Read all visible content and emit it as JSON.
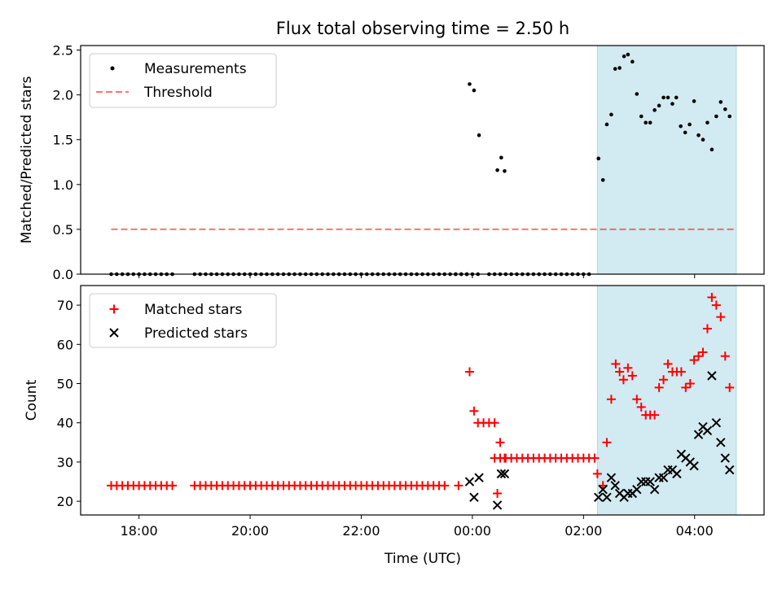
{
  "title": "Flux total observing time = 2.50 h",
  "xlabel": "Time (UTC)",
  "x_ticks": [
    "18:00",
    "20:00",
    "22:00",
    "00:00",
    "02:00",
    "04:00"
  ],
  "x_tick_hours": [
    18,
    20,
    22,
    24,
    26,
    28
  ],
  "xlim_hours": [
    16.95,
    29.25
  ],
  "highlight_span_hours": [
    26.25,
    28.75
  ],
  "colors": {
    "highlight": "#add8e6",
    "threshold": "#ff0000",
    "matched": "#ff0000",
    "predicted": "#000000",
    "measurement": "#000000"
  },
  "chart_data": [
    {
      "type": "scatter",
      "ylabel": "Matched/Predicted stars",
      "ylim": [
        0,
        2.55
      ],
      "y_ticks": [
        "0.0",
        "0.5",
        "1.0",
        "1.5",
        "2.0",
        "2.5"
      ],
      "y_tick_values": [
        0,
        0.5,
        1.0,
        1.5,
        2.0,
        2.5
      ],
      "legend": {
        "placement": "upper left",
        "measurements_label": "Measurements",
        "threshold_label": "Threshold"
      },
      "threshold": {
        "value": 0.5,
        "x_range_hours": [
          17.5,
          28.7
        ]
      },
      "zero_segments_hours": [
        [
          17.5,
          18.65
        ],
        [
          19.0,
          23.95
        ],
        [
          23.7,
          24.05
        ],
        [
          24.3,
          26.05
        ]
      ],
      "zero_step_hours": 0.1,
      "points": [
        [
          23.95,
          2.12
        ],
        [
          24.03,
          2.05
        ],
        [
          24.12,
          1.55
        ],
        [
          24.45,
          1.16
        ],
        [
          24.52,
          1.3
        ],
        [
          24.58,
          1.15
        ],
        [
          26.27,
          1.29
        ],
        [
          26.35,
          1.05
        ],
        [
          26.42,
          1.67
        ],
        [
          26.5,
          1.78
        ],
        [
          26.57,
          2.29
        ],
        [
          26.65,
          2.3
        ],
        [
          26.73,
          2.43
        ],
        [
          26.8,
          2.45
        ],
        [
          26.88,
          2.37
        ],
        [
          26.96,
          2.01
        ],
        [
          27.04,
          1.76
        ],
        [
          27.12,
          1.69
        ],
        [
          27.2,
          1.69
        ],
        [
          27.28,
          1.83
        ],
        [
          27.36,
          1.88
        ],
        [
          27.44,
          1.97
        ],
        [
          27.52,
          1.97
        ],
        [
          27.6,
          1.9
        ],
        [
          27.67,
          1.97
        ],
        [
          27.75,
          1.65
        ],
        [
          27.83,
          1.58
        ],
        [
          27.91,
          1.67
        ],
        [
          27.99,
          1.93
        ],
        [
          28.07,
          1.55
        ],
        [
          28.15,
          1.5
        ],
        [
          28.23,
          1.69
        ],
        [
          28.31,
          1.39
        ],
        [
          28.39,
          1.76
        ],
        [
          28.47,
          1.92
        ],
        [
          28.55,
          1.84
        ],
        [
          28.63,
          1.76
        ]
      ]
    },
    {
      "type": "scatter",
      "ylabel": "Count",
      "ylim": [
        16.5,
        75
      ],
      "y_ticks": [
        "20",
        "30",
        "40",
        "50",
        "60",
        "70"
      ],
      "y_tick_values": [
        20,
        30,
        40,
        50,
        60,
        70
      ],
      "legend": {
        "placement": "upper left"
      },
      "series": [
        {
          "name": "Matched stars",
          "marker": "+",
          "flat_segments": [
            {
              "x_range_hours": [
                17.5,
                18.65
              ],
              "y": 24
            },
            {
              "x_range_hours": [
                19.0,
                23.4
              ],
              "y": 24
            },
            {
              "x_range_hours": [
                24.4,
                26.15
              ],
              "y": 31
            }
          ],
          "step_hours": 0.1,
          "points": [
            [
              23.5,
              24
            ],
            [
              23.75,
              24
            ],
            [
              23.95,
              53
            ],
            [
              24.03,
              43
            ],
            [
              24.1,
              40
            ],
            [
              24.2,
              40
            ],
            [
              24.3,
              40
            ],
            [
              24.4,
              40
            ],
            [
              24.45,
              22
            ],
            [
              24.5,
              35
            ],
            [
              24.58,
              31
            ],
            [
              26.25,
              27
            ],
            [
              26.35,
              24
            ],
            [
              26.42,
              35
            ],
            [
              26.5,
              46
            ],
            [
              26.58,
              55
            ],
            [
              26.65,
              53
            ],
            [
              26.72,
              51
            ],
            [
              26.8,
              54
            ],
            [
              26.88,
              52
            ],
            [
              26.96,
              46
            ],
            [
              27.04,
              44
            ],
            [
              27.12,
              42
            ],
            [
              27.2,
              42
            ],
            [
              27.28,
              42
            ],
            [
              27.36,
              49
            ],
            [
              27.44,
              51
            ],
            [
              27.52,
              55
            ],
            [
              27.6,
              53
            ],
            [
              27.68,
              53
            ],
            [
              27.76,
              53
            ],
            [
              27.84,
              49
            ],
            [
              27.92,
              50
            ],
            [
              27.99,
              56
            ],
            [
              28.07,
              57
            ],
            [
              28.15,
              58
            ],
            [
              28.23,
              64
            ],
            [
              28.31,
              72
            ],
            [
              28.39,
              70
            ],
            [
              28.47,
              67
            ],
            [
              28.55,
              57
            ],
            [
              28.63,
              49
            ]
          ]
        },
        {
          "name": "Predicted stars",
          "marker": "x",
          "points": [
            [
              23.95,
              25
            ],
            [
              24.03,
              21
            ],
            [
              24.12,
              26
            ],
            [
              24.45,
              19
            ],
            [
              24.52,
              27
            ],
            [
              24.58,
              27
            ],
            [
              26.27,
              21
            ],
            [
              26.35,
              23
            ],
            [
              26.42,
              21
            ],
            [
              26.5,
              26
            ],
            [
              26.57,
              24
            ],
            [
              26.65,
              22
            ],
            [
              26.73,
              21
            ],
            [
              26.8,
              22
            ],
            [
              26.88,
              22
            ],
            [
              26.96,
              23
            ],
            [
              27.04,
              25
            ],
            [
              27.12,
              25
            ],
            [
              27.2,
              25
            ],
            [
              27.28,
              23
            ],
            [
              27.36,
              26
            ],
            [
              27.44,
              26
            ],
            [
              27.52,
              28
            ],
            [
              27.6,
              28
            ],
            [
              27.68,
              27
            ],
            [
              27.76,
              32
            ],
            [
              27.84,
              31
            ],
            [
              27.92,
              30
            ],
            [
              27.99,
              29
            ],
            [
              28.07,
              37
            ],
            [
              28.15,
              39
            ],
            [
              28.23,
              38
            ],
            [
              28.31,
              52
            ],
            [
              28.39,
              40
            ],
            [
              28.47,
              35
            ],
            [
              28.55,
              31
            ],
            [
              28.63,
              28
            ]
          ]
        }
      ]
    }
  ]
}
